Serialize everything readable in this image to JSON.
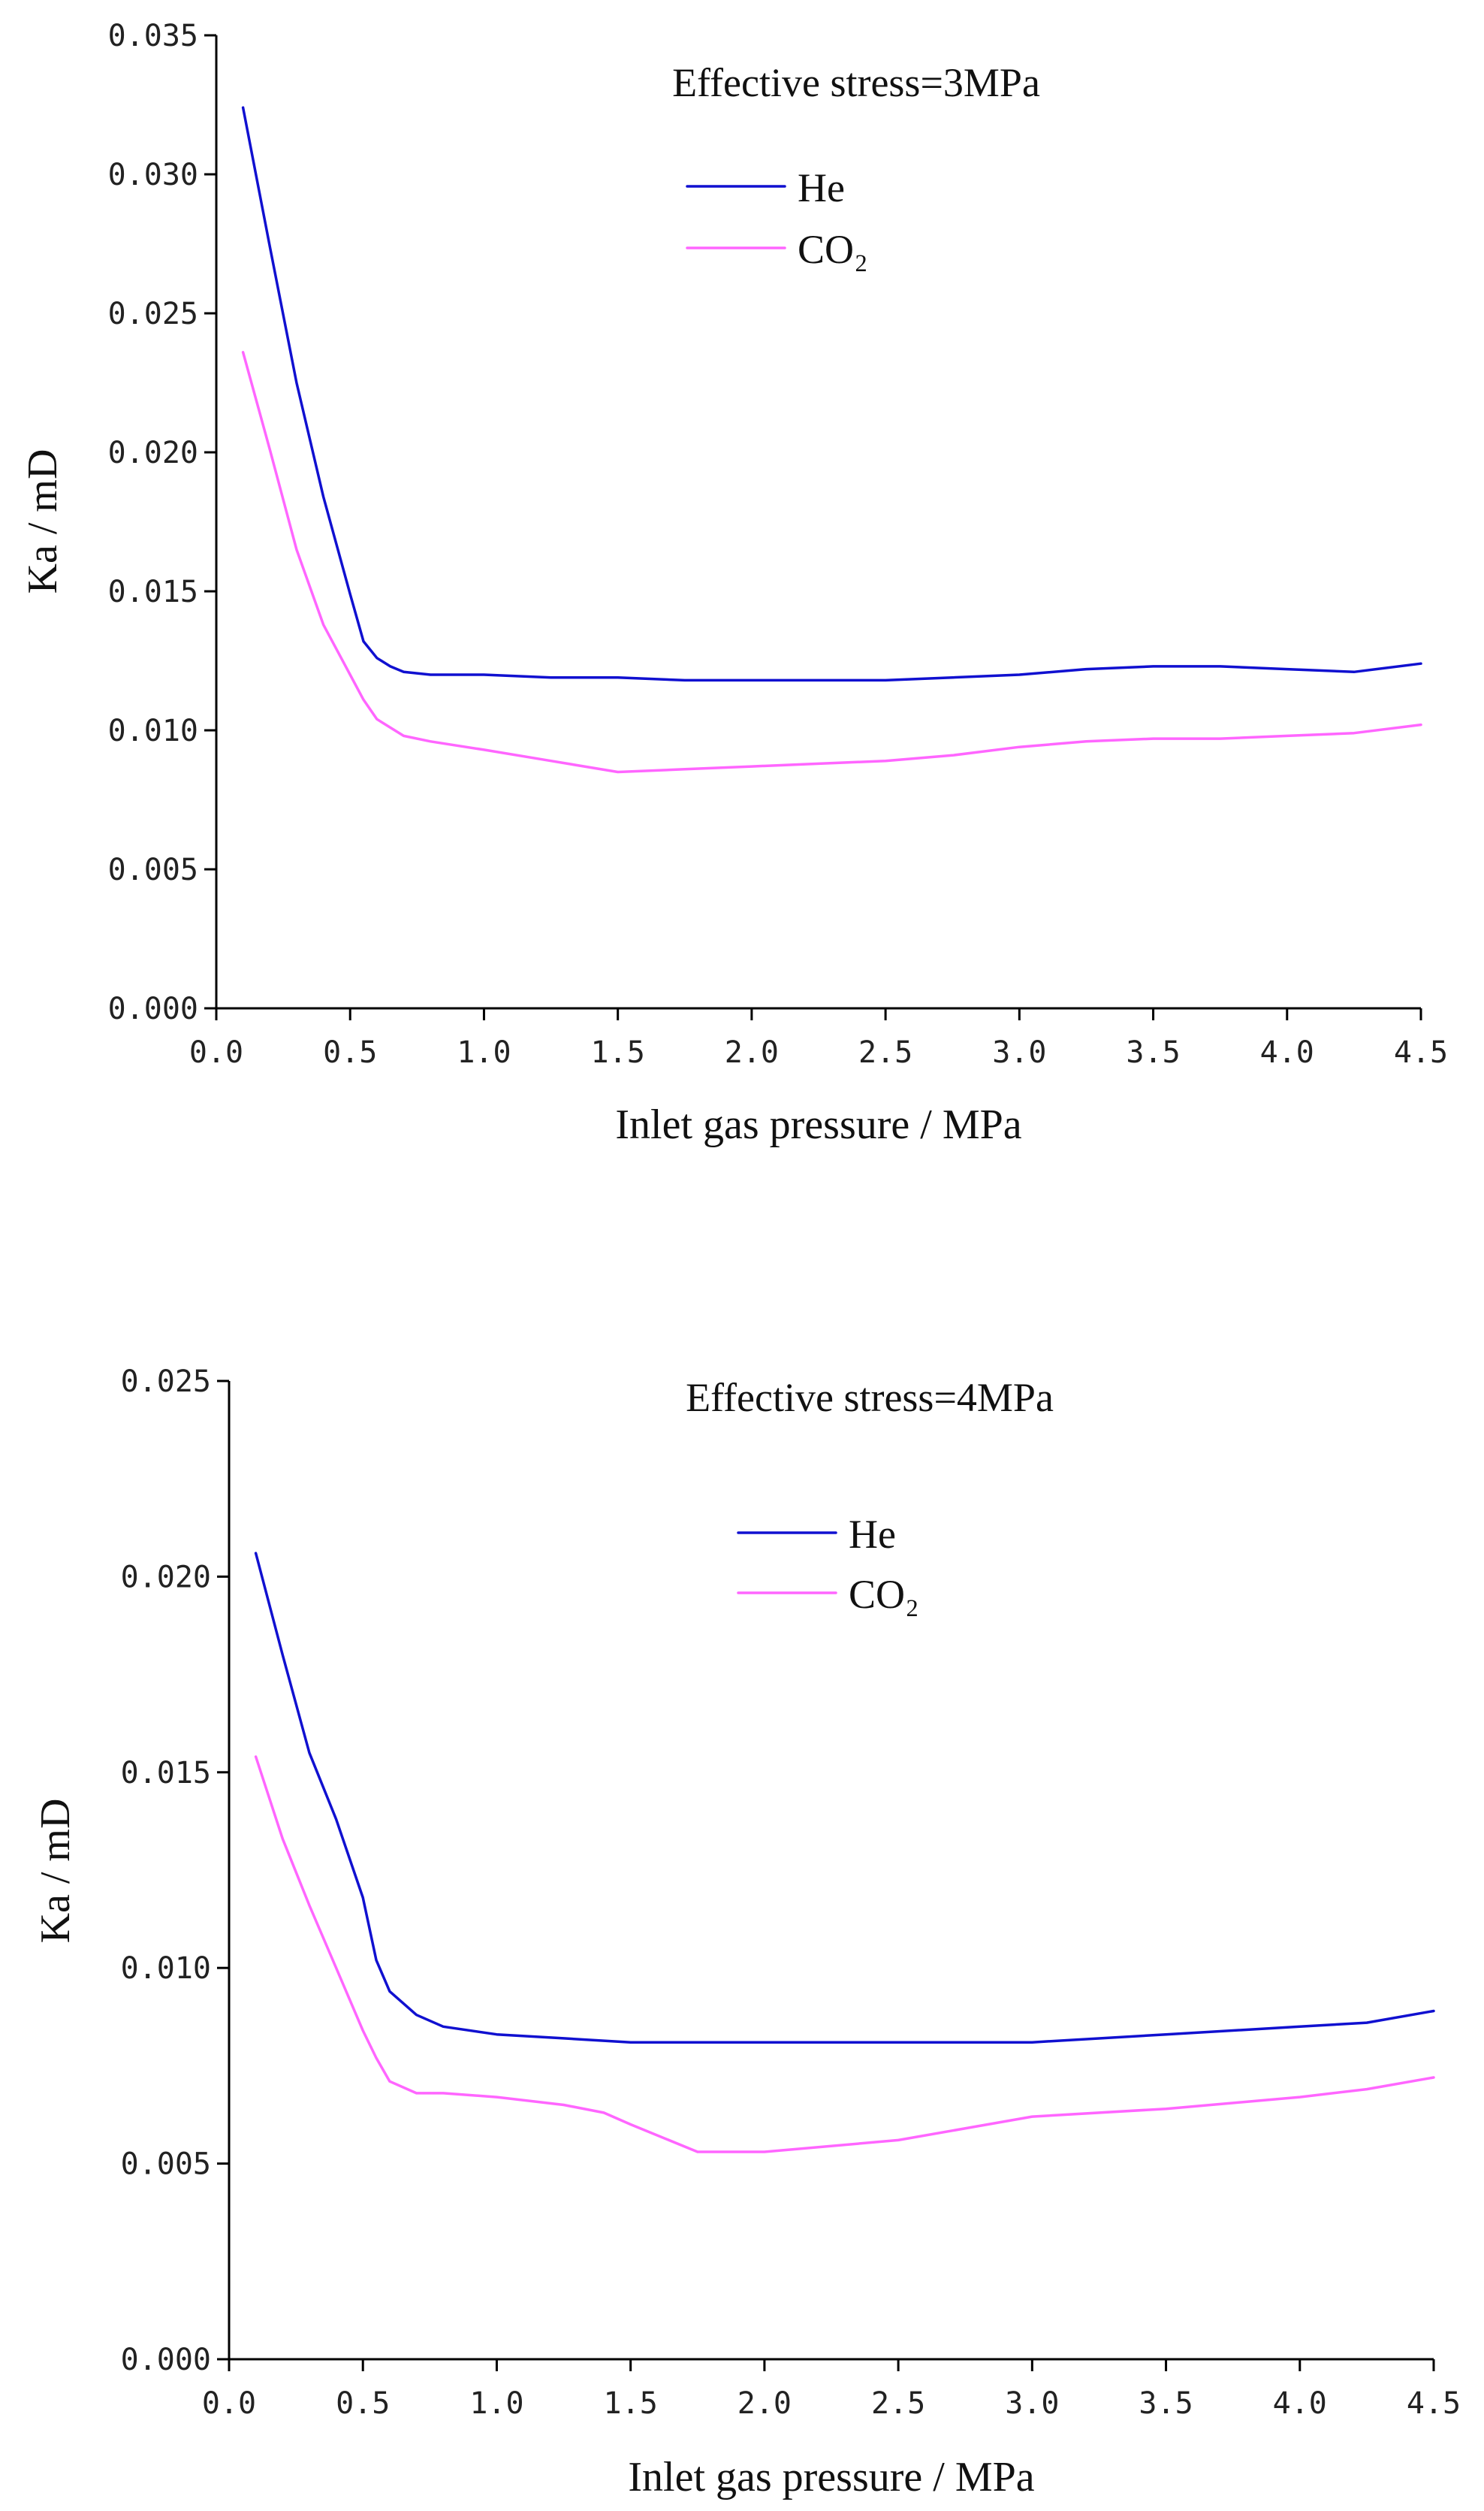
{
  "chart_data": [
    {
      "type": "line",
      "title": "Effective stress=3MPa",
      "xlabel": "Inlet gas pressure / MPa",
      "ylabel": "Ka / mD",
      "xlim": [
        0,
        4.5
      ],
      "ylim": [
        0,
        0.035
      ],
      "xticks": [
        "0.0",
        "0.5",
        "1.0",
        "1.5",
        "2.0",
        "2.5",
        "3.0",
        "3.5",
        "4.0",
        "4.5"
      ],
      "yticks": [
        "0.000",
        "0.005",
        "0.010",
        "0.015",
        "0.020",
        "0.025",
        "0.030",
        "0.035"
      ],
      "legend_position": "top-center",
      "series": [
        {
          "name": "He",
          "color": "#1010d0",
          "x": [
            0.1,
            0.2,
            0.3,
            0.4,
            0.5,
            0.55,
            0.6,
            0.65,
            0.7,
            0.8,
            0.9,
            1.0,
            1.25,
            1.5,
            1.75,
            2.0,
            2.25,
            2.5,
            2.75,
            3.0,
            3.25,
            3.5,
            3.75,
            4.0,
            4.25,
            4.5
          ],
          "y": [
            0.0324,
            0.0274,
            0.0225,
            0.0184,
            0.0149,
            0.0132,
            0.0126,
            0.0123,
            0.0121,
            0.012,
            0.012,
            0.012,
            0.0119,
            0.0119,
            0.0118,
            0.0118,
            0.0118,
            0.0118,
            0.0119,
            0.012,
            0.0122,
            0.0123,
            0.0123,
            0.0122,
            0.0121,
            0.0124
          ]
        },
        {
          "name": "CO₂",
          "color": "#ff66ff",
          "x": [
            0.1,
            0.2,
            0.3,
            0.4,
            0.5,
            0.55,
            0.6,
            0.7,
            0.8,
            1.0,
            1.25,
            1.5,
            1.75,
            2.0,
            2.25,
            2.5,
            2.75,
            3.0,
            3.25,
            3.5,
            3.75,
            4.0,
            4.25,
            4.5
          ],
          "y": [
            0.0236,
            0.0201,
            0.0165,
            0.0138,
            0.012,
            0.0111,
            0.0104,
            0.0098,
            0.0096,
            0.0093,
            0.0089,
            0.0085,
            0.0086,
            0.0087,
            0.0088,
            0.0089,
            0.0091,
            0.0094,
            0.0096,
            0.0097,
            0.0097,
            0.0098,
            0.0099,
            0.0102
          ]
        }
      ]
    },
    {
      "type": "line",
      "title": "Effective stress=4MPa",
      "xlabel": "Inlet gas pressure / MPa",
      "ylabel": "Ka / mD",
      "xlim": [
        0,
        4.5
      ],
      "ylim": [
        0,
        0.025
      ],
      "xticks": [
        "0.0",
        "0.5",
        "1.0",
        "1.5",
        "2.0",
        "2.5",
        "3.0",
        "3.5",
        "4.0",
        "4.5"
      ],
      "yticks": [
        "0.000",
        "0.005",
        "0.010",
        "0.015",
        "0.020",
        "0.025"
      ],
      "legend_position": "top-center",
      "series": [
        {
          "name": "He",
          "color": "#1010d0",
          "x": [
            0.1,
            0.2,
            0.3,
            0.4,
            0.5,
            0.55,
            0.6,
            0.7,
            0.8,
            1.0,
            1.25,
            1.5,
            2.0,
            2.5,
            3.0,
            3.5,
            4.0,
            4.25,
            4.5
          ],
          "y": [
            0.0206,
            0.018,
            0.0155,
            0.0138,
            0.0118,
            0.0102,
            0.0094,
            0.0088,
            0.0085,
            0.0083,
            0.0082,
            0.0081,
            0.0081,
            0.0081,
            0.0081,
            0.0083,
            0.0085,
            0.0086,
            0.0089
          ]
        },
        {
          "name": "CO₂",
          "color": "#ff66ff",
          "x": [
            0.1,
            0.2,
            0.3,
            0.4,
            0.5,
            0.55,
            0.6,
            0.7,
            0.8,
            1.0,
            1.25,
            1.4,
            1.5,
            1.75,
            2.0,
            2.5,
            3.0,
            3.5,
            4.0,
            4.25,
            4.5
          ],
          "y": [
            0.0154,
            0.0133,
            0.0116,
            0.01,
            0.0084,
            0.0077,
            0.0071,
            0.0068,
            0.0068,
            0.0067,
            0.0065,
            0.0063,
            0.006,
            0.0053,
            0.0053,
            0.0056,
            0.0062,
            0.0064,
            0.0067,
            0.0069,
            0.0072
          ]
        }
      ]
    }
  ]
}
